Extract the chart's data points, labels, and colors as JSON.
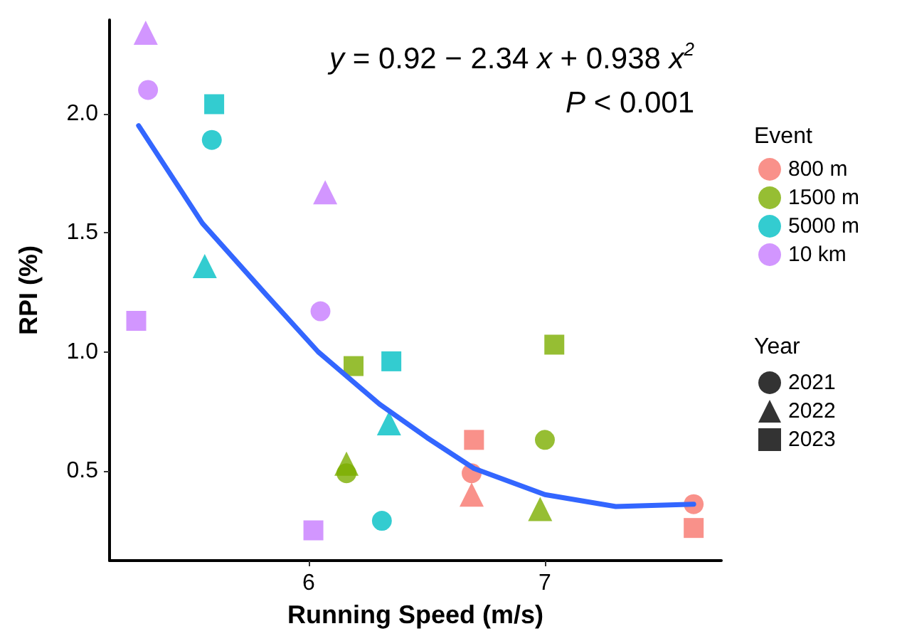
{
  "chart_data": {
    "type": "scatter",
    "xlabel": "Running Speed (m/s)",
    "ylabel": "RPI (%)",
    "legend_title": [
      "Event",
      "Year"
    ],
    "legend": "right",
    "grid": false,
    "xlim": [
      5.157,
      7.747
    ],
    "xticks": [
      6,
      7
    ],
    "ylim": [
      0.123,
      2.394
    ],
    "yticks": [
      {
        "value": 0.5,
        "label": "0.5"
      },
      {
        "value": 1,
        "label": "1.0"
      },
      1.5,
      {
        "value": 2,
        "label": "2.0"
      }
    ],
    "annotations": [
      "y = 0.92 − 2.34 x + 0.938 x$^{2}$",
      "P < 0.001"
    ],
    "series": [
      {
        "name": "800 m",
        "color": "#f8766d",
        "marker": [
          "circle",
          "circle",
          "triangle",
          "square",
          "square"
        ],
        "x": [
          7.63,
          6.69,
          6.69,
          6.7,
          7.63
        ],
        "values": [
          0.36,
          0.49,
          0.4,
          0.63,
          0.26
        ]
      },
      {
        "name": "1500 m",
        "color": "#7cae00",
        "marker": [
          "circle",
          "circle",
          "triangle",
          "triangle",
          "square",
          "square"
        ],
        "x": [
          7.0,
          6.16,
          6.98,
          6.16,
          7.04,
          6.19
        ],
        "values": [
          0.63,
          0.49,
          0.34,
          0.53,
          1.03,
          0.94
        ]
      },
      {
        "name": "5000 m",
        "color": "#00bfc4",
        "marker": [
          "circle",
          "circle",
          "triangle",
          "triangle",
          "square",
          "square"
        ],
        "x": [
          5.59,
          6.31,
          5.56,
          6.34,
          5.6,
          6.35
        ],
        "values": [
          1.89,
          0.29,
          1.36,
          0.7,
          2.04,
          0.96
        ]
      },
      {
        "name": "10 km",
        "color": "#c77cff",
        "marker": [
          "circle",
          "circle",
          "triangle",
          "triangle",
          "square",
          "square"
        ],
        "x": [
          5.32,
          6.05,
          5.31,
          6.07,
          5.27,
          6.02
        ],
        "values": [
          2.1,
          1.17,
          2.34,
          1.67,
          1.13,
          0.25
        ]
      },
      {
        "name": "2021",
        "color": "#000000",
        "marker": "circle"
      },
      {
        "name": "2022",
        "color": "#000000",
        "marker": "triangle"
      },
      {
        "name": "2023",
        "color": "#000000",
        "marker": "square"
      },
      {
        "type": "line",
        "color": "#3366ff",
        "marker": "none",
        "line_style": "solid",
        "x": [
          5.28,
          5.55,
          5.82,
          6.04,
          6.3,
          6.5,
          6.7,
          7.0,
          7.3,
          7.63
        ],
        "values": [
          1.95,
          1.54,
          1.24,
          1.0,
          0.78,
          0.64,
          0.51,
          0.4,
          0.35,
          0.36
        ]
      }
    ]
  }
}
